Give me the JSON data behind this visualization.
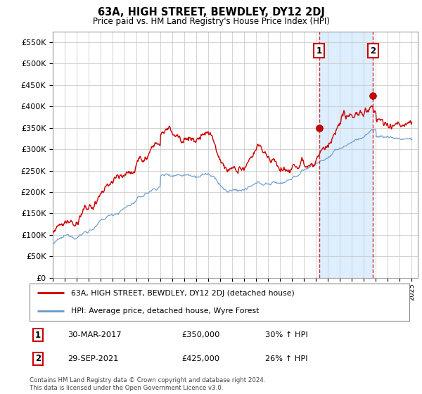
{
  "title": "63A, HIGH STREET, BEWDLEY, DY12 2DJ",
  "subtitle": "Price paid vs. HM Land Registry's House Price Index (HPI)",
  "ylim": [
    0,
    575000
  ],
  "yticks": [
    0,
    50000,
    100000,
    150000,
    200000,
    250000,
    300000,
    350000,
    400000,
    450000,
    500000,
    550000
  ],
  "ytick_labels": [
    "£0",
    "£50K",
    "£100K",
    "£150K",
    "£200K",
    "£250K",
    "£300K",
    "£350K",
    "£400K",
    "£450K",
    "£500K",
    "£550K"
  ],
  "marker1": {
    "year": 2017.25,
    "value": 350000,
    "label": "1",
    "date": "30-MAR-2017",
    "price": "£350,000",
    "pct": "30% ↑ HPI"
  },
  "marker2": {
    "year": 2021.75,
    "value": 425000,
    "label": "2",
    "date": "29-SEP-2021",
    "price": "£425,000",
    "pct": "26% ↑ HPI"
  },
  "legend_line1": "63A, HIGH STREET, BEWDLEY, DY12 2DJ (detached house)",
  "legend_line2": "HPI: Average price, detached house, Wyre Forest",
  "footer": "Contains HM Land Registry data © Crown copyright and database right 2024.\nThis data is licensed under the Open Government Licence v3.0.",
  "line_color_red": "#cc0000",
  "line_color_blue": "#6699cc",
  "shade_color": "#ddeeff",
  "grid_color": "#cccccc",
  "background_color": "#ffffff",
  "hpi_base": 80000,
  "prop_base": 100000,
  "prop_scale": 1.3
}
